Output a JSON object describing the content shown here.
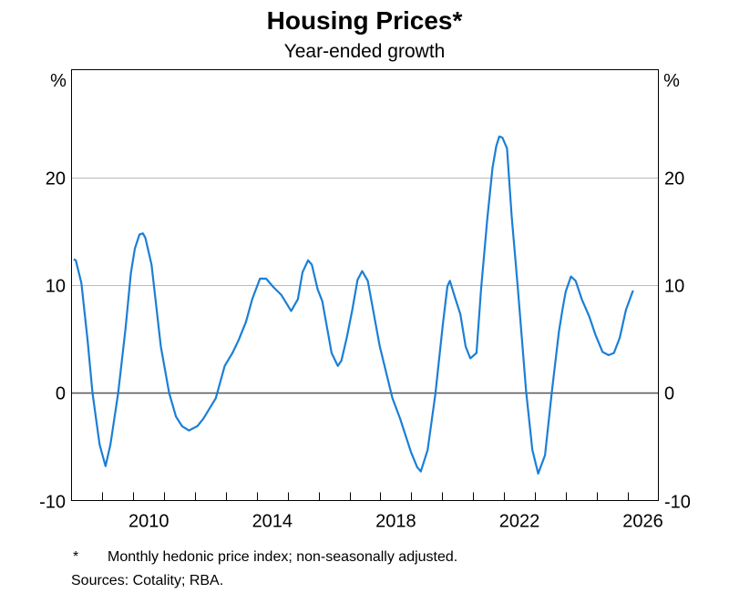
{
  "chart_data": {
    "type": "line",
    "title": "Housing Prices*",
    "subtitle": "Year-ended growth",
    "ylabel_left": "%",
    "ylabel_right": "%",
    "xlim": [
      2008,
      2027
    ],
    "ylim": [
      -10,
      30
    ],
    "x_ticks": [
      "2010",
      "2014",
      "2018",
      "2022",
      "2026"
    ],
    "y_ticks": [
      -10,
      0,
      10,
      20
    ],
    "grid": true,
    "line_color": "#1b7fd6",
    "series": [
      {
        "points": [
          [
            2008.07,
            12.4
          ],
          [
            2008.14,
            12.3
          ],
          [
            2008.32,
            10.2
          ],
          [
            2008.52,
            4.9
          ],
          [
            2008.68,
            0
          ],
          [
            2008.91,
            -4.8
          ],
          [
            2009.1,
            -6.8
          ],
          [
            2009.26,
            -4.8
          ],
          [
            2009.51,
            0
          ],
          [
            2009.75,
            6.0
          ],
          [
            2009.92,
            11.1
          ],
          [
            2010.05,
            13.4
          ],
          [
            2010.2,
            14.7
          ],
          [
            2010.31,
            14.8
          ],
          [
            2010.39,
            14.4
          ],
          [
            2010.59,
            11.9
          ],
          [
            2010.89,
            4.3
          ],
          [
            2011.16,
            0
          ],
          [
            2011.38,
            -2.2
          ],
          [
            2011.58,
            -3.1
          ],
          [
            2011.8,
            -3.5
          ],
          [
            2012.07,
            -3.1
          ],
          [
            2012.27,
            -2.4
          ],
          [
            2012.67,
            -0.5
          ],
          [
            2012.96,
            2.5
          ],
          [
            2013.21,
            3.7
          ],
          [
            2013.41,
            4.9
          ],
          [
            2013.65,
            6.6
          ],
          [
            2013.85,
            8.7
          ],
          [
            2014.1,
            10.6
          ],
          [
            2014.3,
            10.6
          ],
          [
            2014.54,
            9.8
          ],
          [
            2014.79,
            9.1
          ],
          [
            2015.11,
            7.6
          ],
          [
            2015.33,
            8.7
          ],
          [
            2015.48,
            11.2
          ],
          [
            2015.66,
            12.3
          ],
          [
            2015.78,
            11.9
          ],
          [
            2015.97,
            9.6
          ],
          [
            2016.12,
            8.5
          ],
          [
            2016.42,
            3.7
          ],
          [
            2016.62,
            2.5
          ],
          [
            2016.74,
            3.0
          ],
          [
            2016.91,
            5.1
          ],
          [
            2017.09,
            7.7
          ],
          [
            2017.26,
            10.5
          ],
          [
            2017.41,
            11.3
          ],
          [
            2017.59,
            10.4
          ],
          [
            2017.98,
            4.3
          ],
          [
            2018.39,
            -0.5
          ],
          [
            2018.64,
            -2.4
          ],
          [
            2018.99,
            -5.5
          ],
          [
            2019.19,
            -6.9
          ],
          [
            2019.31,
            -7.3
          ],
          [
            2019.53,
            -5.3
          ],
          [
            2019.78,
            -0.1
          ],
          [
            2020.02,
            6.3
          ],
          [
            2020.17,
            9.9
          ],
          [
            2020.25,
            10.4
          ],
          [
            2020.42,
            8.8
          ],
          [
            2020.59,
            7.3
          ],
          [
            2020.76,
            4.3
          ],
          [
            2020.91,
            3.2
          ],
          [
            2021.11,
            3.7
          ],
          [
            2021.26,
            9.6
          ],
          [
            2021.46,
            16.1
          ],
          [
            2021.63,
            20.9
          ],
          [
            2021.75,
            22.9
          ],
          [
            2021.85,
            23.8
          ],
          [
            2021.95,
            23.7
          ],
          [
            2022.1,
            22.7
          ],
          [
            2022.25,
            16.4
          ],
          [
            2022.44,
            10.1
          ],
          [
            2022.72,
            0.1
          ],
          [
            2022.92,
            -5.3
          ],
          [
            2023.11,
            -7.5
          ],
          [
            2023.33,
            -5.8
          ],
          [
            2023.55,
            0.1
          ],
          [
            2023.78,
            5.7
          ],
          [
            2023.9,
            7.8
          ],
          [
            2024.0,
            9.4
          ],
          [
            2024.17,
            10.8
          ],
          [
            2024.32,
            10.4
          ],
          [
            2024.52,
            8.7
          ],
          [
            2024.76,
            7.1
          ],
          [
            2024.96,
            5.4
          ],
          [
            2025.19,
            3.8
          ],
          [
            2025.39,
            3.5
          ],
          [
            2025.56,
            3.7
          ],
          [
            2025.75,
            5.1
          ],
          [
            2025.95,
            7.7
          ],
          [
            2026.18,
            9.5
          ]
        ]
      }
    ]
  },
  "footnotes": {
    "marker": "*",
    "note": "Monthly hedonic price index; non-seasonally adjusted.",
    "sources": "Sources: Cotality; RBA."
  }
}
